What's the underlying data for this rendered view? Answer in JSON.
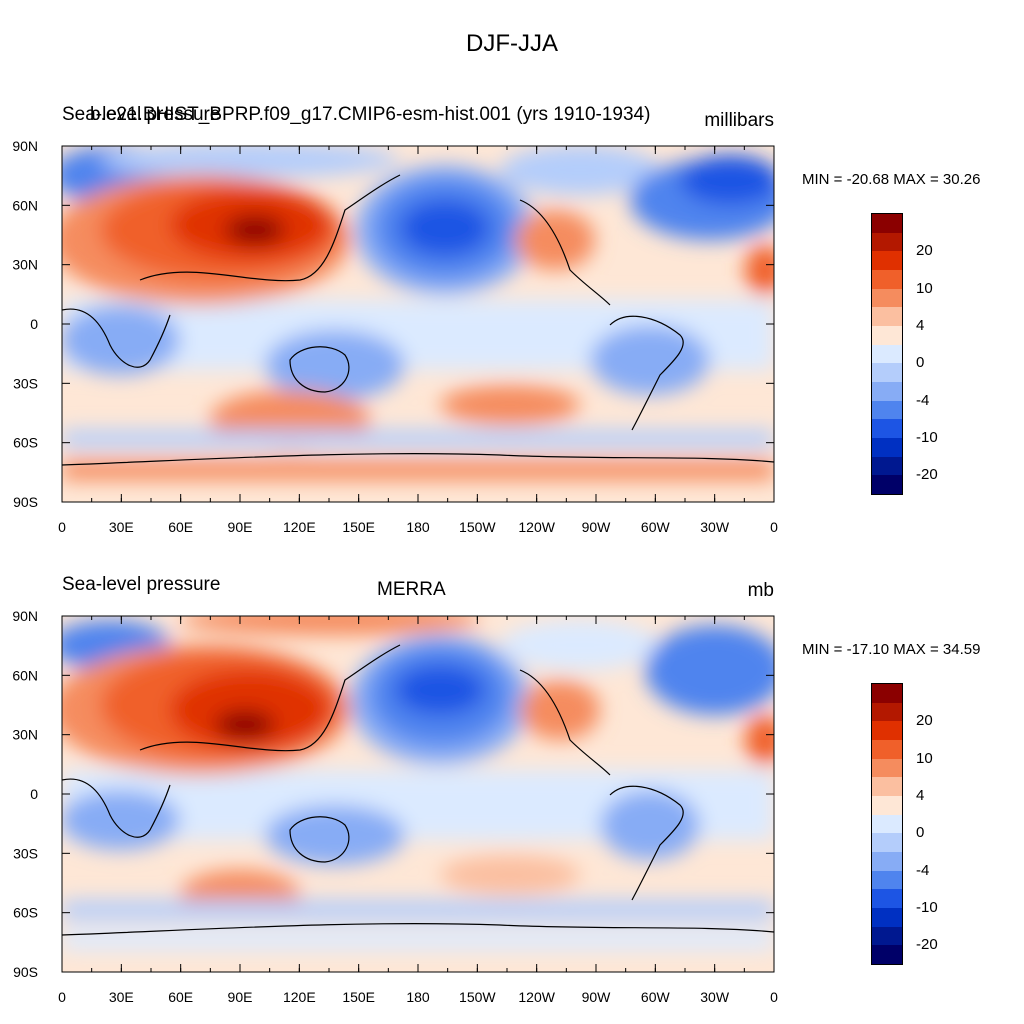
{
  "figure_title": "DJF-JJA",
  "panels": [
    {
      "left_label": "Sea-level pressure",
      "center_label": "b.e21.BHIST_BPRP.f09_g17.CMIP6-esm-hist.001 (yrs 1910-1934)",
      "units": "millibars",
      "stats": "MIN = -20.68 MAX =  30.26"
    },
    {
      "left_label": "Sea-level pressure",
      "center_label": "MERRA",
      "units": "mb",
      "stats": "MIN = -17.10 MAX =  34.59"
    }
  ],
  "x_tick_labels": [
    "0",
    "30E",
    "60E",
    "90E",
    "120E",
    "150E",
    "180",
    "150W",
    "120W",
    "90W",
    "60W",
    "30W",
    "0"
  ],
  "y_tick_labels": [
    "90N",
    "60N",
    "30N",
    "0",
    "30S",
    "60S",
    "90S"
  ],
  "colorbar": {
    "colors": [
      "#8b0000",
      "#b31800",
      "#e03000",
      "#f0602a",
      "#f58c5e",
      "#fbbfa0",
      "#fee7d6",
      "#dbeaff",
      "#b4cdfb",
      "#87acf5",
      "#4f84ee",
      "#1d55e4",
      "#0030c2",
      "#001890",
      "#000068"
    ],
    "labels": [
      "20",
      "10",
      "4",
      "0",
      "-4",
      "-10",
      "-20"
    ]
  }
}
